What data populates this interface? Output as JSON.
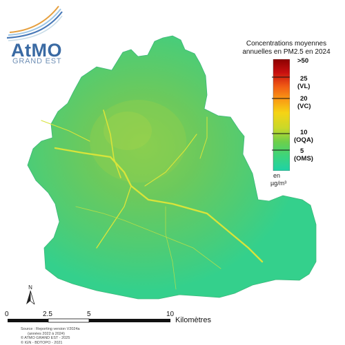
{
  "logo": {
    "name": "AtMO",
    "sub": "GRAND EST"
  },
  "legend": {
    "title_line1": "Concentrations moyennes",
    "title_line2": "annuelles en PM2.5 en 2024",
    "ticks": [
      {
        "value": ">50",
        "note": ""
      },
      {
        "value": "25",
        "note": "(VL)"
      },
      {
        "value": "20",
        "note": "(VC)"
      },
      {
        "value": "10",
        "note": "(OQA)"
      },
      {
        "value": "5",
        "note": "(OMS)"
      }
    ],
    "unit_line1": "en",
    "unit_line2": "µg/m³",
    "colors": [
      "#8b0000",
      "#c81010",
      "#f05a14",
      "#fa9a14",
      "#f5d414",
      "#c8d82a",
      "#6ecf4a",
      "#3ed47a",
      "#1fd2a6"
    ]
  },
  "map": {
    "fill_color": "#5ec96e",
    "border_color": "#3cb87a",
    "road_color": "#d8e43a"
  },
  "north": {
    "label": "N"
  },
  "scalebar": {
    "labels": [
      "0",
      "2.5",
      "5",
      "10"
    ],
    "unit": "Kilomètres"
  },
  "source": {
    "line1": "Source : Reporting version V2024a",
    "line2": "(années 2022 à 2024)",
    "line3": "© ATMO GRAND EST - 2025",
    "line4": "© IGN - BDTOPO - 2021"
  }
}
